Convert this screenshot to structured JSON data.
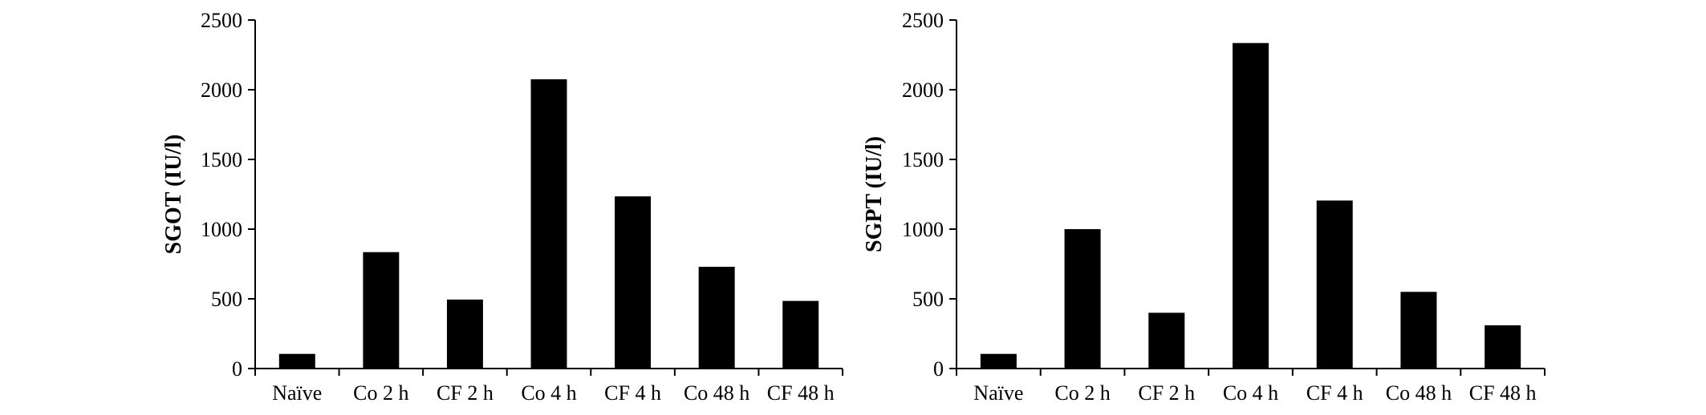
{
  "chart_data": [
    {
      "type": "bar",
      "ylabel": "SGOT (IU/l)",
      "xlabel": "",
      "categories": [
        "Naïve",
        "Co 2 h",
        "CF 2 h",
        "Co 4 h",
        "CF 4 h",
        "Co 48 h",
        "CF 48 h"
      ],
      "values": [
        105,
        835,
        495,
        2075,
        1235,
        730,
        485
      ],
      "ylim": [
        0,
        2500
      ],
      "yticks": [
        0,
        500,
        1000,
        1500,
        2000,
        2500
      ],
      "grid": false,
      "color": "#000000"
    },
    {
      "type": "bar",
      "ylabel": "SGPT (IU/l)",
      "xlabel": "",
      "categories": [
        "Naïve",
        "Co 2 h",
        "CF 2 h",
        "Co 4 h",
        "CF 4 h",
        "Co 48 h",
        "CF 48 h"
      ],
      "values": [
        105,
        1000,
        400,
        2335,
        1205,
        550,
        310
      ],
      "ylim": [
        0,
        2500
      ],
      "yticks": [
        0,
        500,
        1000,
        1500,
        2000,
        2500
      ],
      "grid": false,
      "color": "#000000"
    }
  ]
}
